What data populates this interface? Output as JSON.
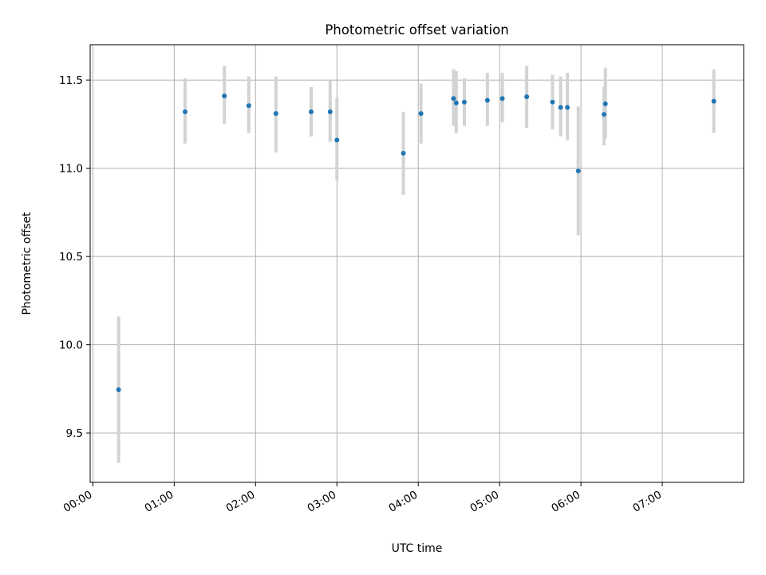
{
  "chart_data": {
    "type": "scatter",
    "title": "Photometric offset variation",
    "xlabel": "UTC time",
    "ylabel": "Photometric offset",
    "xlim": [
      "-00:02",
      "08:00"
    ],
    "ylim": [
      9.22,
      11.7
    ],
    "grid": true,
    "x_ticks": [
      "00:00",
      "01:00",
      "02:00",
      "03:00",
      "04:00",
      "05:00",
      "06:00",
      "07:00"
    ],
    "y_ticks": [
      "9.5",
      "10.0",
      "10.5",
      "11.0",
      "11.5"
    ],
    "points": [
      {
        "time": "00:19",
        "y": 9.745,
        "lo": 9.33,
        "hi": 10.16
      },
      {
        "time": "01:08",
        "y": 11.32,
        "lo": 11.14,
        "hi": 11.51
      },
      {
        "time": "01:37",
        "y": 11.41,
        "lo": 11.25,
        "hi": 11.58
      },
      {
        "time": "01:55",
        "y": 11.355,
        "lo": 11.2,
        "hi": 11.52
      },
      {
        "time": "02:15",
        "y": 11.31,
        "lo": 11.09,
        "hi": 11.52
      },
      {
        "time": "02:41",
        "y": 11.32,
        "lo": 11.18,
        "hi": 11.46
      },
      {
        "time": "02:55",
        "y": 11.32,
        "lo": 11.15,
        "hi": 11.5
      },
      {
        "time": "03:00",
        "y": 11.16,
        "lo": 10.93,
        "hi": 11.4
      },
      {
        "time": "03:49",
        "y": 11.085,
        "lo": 10.85,
        "hi": 11.32
      },
      {
        "time": "04:02",
        "y": 11.31,
        "lo": 11.14,
        "hi": 11.48
      },
      {
        "time": "04:26",
        "y": 11.395,
        "lo": 11.24,
        "hi": 11.56
      },
      {
        "time": "04:28",
        "y": 11.37,
        "lo": 11.2,
        "hi": 11.55
      },
      {
        "time": "04:34",
        "y": 11.375,
        "lo": 11.24,
        "hi": 11.51
      },
      {
        "time": "04:51",
        "y": 11.385,
        "lo": 11.24,
        "hi": 11.54
      },
      {
        "time": "05:02",
        "y": 11.395,
        "lo": 11.26,
        "hi": 11.54
      },
      {
        "time": "05:20",
        "y": 11.405,
        "lo": 11.23,
        "hi": 11.58
      },
      {
        "time": "05:39",
        "y": 11.375,
        "lo": 11.22,
        "hi": 11.53
      },
      {
        "time": "05:45",
        "y": 11.345,
        "lo": 11.18,
        "hi": 11.52
      },
      {
        "time": "05:50",
        "y": 11.345,
        "lo": 11.16,
        "hi": 11.54
      },
      {
        "time": "05:58",
        "y": 10.985,
        "lo": 10.62,
        "hi": 11.35
      },
      {
        "time": "06:17",
        "y": 11.305,
        "lo": 11.13,
        "hi": 11.46
      },
      {
        "time": "06:18",
        "y": 11.365,
        "lo": 11.17,
        "hi": 11.57
      },
      {
        "time": "07:38",
        "y": 11.38,
        "lo": 11.2,
        "hi": 11.56
      }
    ],
    "marker_color": "#1f77b4",
    "errorbar_color": "#d3d3d3"
  }
}
